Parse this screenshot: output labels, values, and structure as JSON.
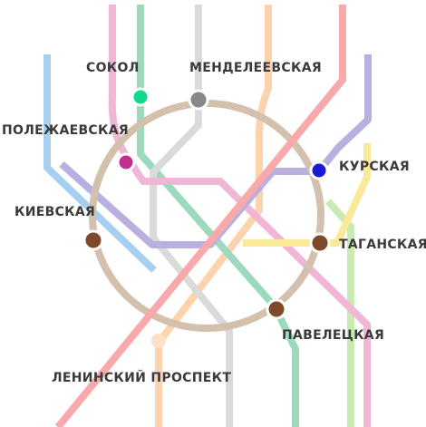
{
  "colors": {
    "ring": "#d3c0ad",
    "line_red": "#f7a9ab",
    "line_pink": "#f1b6d6",
    "line_green": "#9dd9bd",
    "line_grey": "#dadada",
    "line_orange": "#fcd3ad",
    "line_blue": "#a6cff0",
    "line_purple": "#b9b0df",
    "line_yellow": "#fbe99a",
    "line_lime": "#c9eab2",
    "dot_sokol": "#12d88f",
    "dot_mendeleevskaya": "#888888",
    "dot_polezhaevskaya": "#c2308f",
    "dot_kurskaya": "#1a1ad6",
    "dot_transfer": "#7d4a2b",
    "dot_leninsky": "#fde0c7"
  },
  "stations": {
    "sokol": "СОКОЛ",
    "mendeleevskaya": "МЕНДЕЛЕЕВСКАЯ",
    "polezhaevskaya": "ПОЛЕЖАЕВСКАЯ",
    "kurskaya": "КУРСКАЯ",
    "kievskaya": "КИЕВСКАЯ",
    "taganskaya": "ТАГАНСКАЯ",
    "paveletskaya": "ПАВЕЛЕЦКАЯ",
    "leninsky": "ЛЕНИНСКИЙ ПРОСПЕКТ"
  }
}
